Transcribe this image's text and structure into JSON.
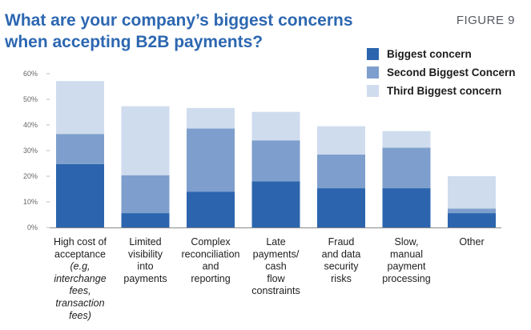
{
  "header": {
    "title_lines": [
      "What are your company’s biggest concerns",
      "when accepting B2B payments?"
    ],
    "figure_label": "FIGURE 9"
  },
  "colors": {
    "biggest": "#2c65ae",
    "second": "#7e9fcd",
    "third": "#cfdcee",
    "title": "#2c67b1"
  },
  "chart_data": {
    "type": "bar",
    "stacked": true,
    "title": "What are your company’s biggest concerns when accepting B2B payments?",
    "xlabel": "",
    "ylabel": "",
    "ylim": [
      0,
      60
    ],
    "yticks": [
      0,
      10,
      20,
      30,
      40,
      50,
      60
    ],
    "ytick_labels": [
      "0%",
      "10%",
      "20%",
      "30%",
      "40%",
      "50%",
      "60%"
    ],
    "grid": false,
    "legend_position": "top-right",
    "categories": [
      "High cost of acceptance (e.g. interchange fees, transaction fees)",
      "Limited visibility into payments",
      "Complex reconciliation and reporting",
      "Late payments/ cash flow constraints",
      "Fraud and data security risks",
      "Slow, manual payment processing",
      "Other"
    ],
    "category_label_lines": [
      [
        {
          "t": "High cost of",
          "i": false
        },
        {
          "t": "acceptance",
          "i": false
        },
        {
          "t": "(e.g,",
          "i": true
        },
        {
          "t": "interchange",
          "i": true
        },
        {
          "t": "fees,",
          "i": true
        },
        {
          "t": "transaction",
          "i": true
        },
        {
          "t": "fees)",
          "i": true
        }
      ],
      [
        {
          "t": "Limited",
          "i": false
        },
        {
          "t": "visibility",
          "i": false
        },
        {
          "t": "into",
          "i": false
        },
        {
          "t": "payments",
          "i": false
        }
      ],
      [
        {
          "t": "Complex",
          "i": false
        },
        {
          "t": "reconciliation",
          "i": false
        },
        {
          "t": "and",
          "i": false
        },
        {
          "t": "reporting",
          "i": false
        }
      ],
      [
        {
          "t": "Late",
          "i": false
        },
        {
          "t": "payments/",
          "i": false
        },
        {
          "t": "cash",
          "i": false
        },
        {
          "t": "flow",
          "i": false
        },
        {
          "t": "constraints",
          "i": false
        }
      ],
      [
        {
          "t": "Fraud",
          "i": false
        },
        {
          "t": "and data",
          "i": false
        },
        {
          "t": "security",
          "i": false
        },
        {
          "t": "risks",
          "i": false
        }
      ],
      [
        {
          "t": "Slow,",
          "i": false
        },
        {
          "t": "manual",
          "i": false
        },
        {
          "t": "payment",
          "i": false
        },
        {
          "t": "processing",
          "i": false
        }
      ],
      [
        {
          "t": "Other",
          "i": false
        }
      ]
    ],
    "series": [
      {
        "name": "Biggest concern",
        "values": [
          24.7,
          5.6,
          14.0,
          18.0,
          15.3,
          15.3,
          5.6
        ]
      },
      {
        "name": "Second Biggest Concern",
        "values": [
          11.8,
          14.8,
          24.6,
          16.0,
          13.2,
          15.8,
          1.8
        ]
      },
      {
        "name": "Third Biggest concern",
        "values": [
          20.6,
          26.9,
          8.0,
          11.1,
          11.0,
          6.5,
          12.6
        ]
      }
    ]
  }
}
